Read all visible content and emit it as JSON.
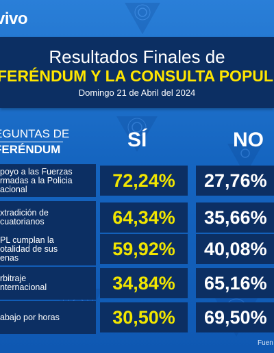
{
  "brand": {
    "logo_text": "vivo"
  },
  "title": {
    "line1": "Resultados Finales de",
    "line2": "FERÉNDUM Y LA CONSULTA POPUL",
    "date": "Domingo 21 de Abril del 2024"
  },
  "table": {
    "question_header_line1": "EGUNTAS DE",
    "question_header_line2": "FERÉNDUM",
    "yes_header": "SÍ",
    "no_header": "NO",
    "rows": [
      {
        "question": [
          "poyo a las Fuerzas",
          "rmadas a la Policia",
          "acional"
        ],
        "yes": "72,24%",
        "no": "27,76%"
      },
      {
        "question": [
          "xtradición de",
          "cuatorianos"
        ],
        "yes": "64,34%",
        "no": "35,66%"
      },
      {
        "question": [
          "PL cumplan la",
          "otalidad de sus",
          "enas"
        ],
        "yes": "59,92%",
        "no": "40,08%"
      },
      {
        "question": [
          "rbitraje",
          "nternacional"
        ],
        "yes": "34,84%",
        "no": "65,16%"
      },
      {
        "question": [
          "abajo por horas"
        ],
        "yes": "30,50%",
        "no": "69,50%"
      }
    ]
  },
  "footer": {
    "source": "Fuen"
  },
  "colors": {
    "background": "#1565c0",
    "panel": "#0c2f63",
    "yes_accent": "#f2e600",
    "title_accent": "#ffe600"
  }
}
